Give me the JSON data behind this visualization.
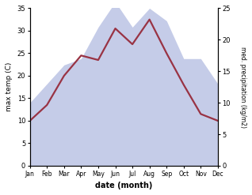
{
  "months": [
    "Jan",
    "Feb",
    "Mar",
    "Apr",
    "May",
    "Jun",
    "Jul",
    "Aug",
    "Sep",
    "Oct",
    "Nov",
    "Dec"
  ],
  "temperature": [
    10,
    13.5,
    20,
    24.5,
    23.5,
    30.5,
    27,
    32.5,
    25,
    18,
    11.5,
    10
  ],
  "precipitation": [
    10,
    13,
    16,
    17,
    22,
    26,
    22,
    25,
    23,
    17,
    17,
    13
  ],
  "temp_color": "#993344",
  "precip_fill_color": "#c5cce8",
  "temp_ylim": [
    0,
    35
  ],
  "precip_ylim": [
    0,
    25
  ],
  "temp_yticks": [
    0,
    5,
    10,
    15,
    20,
    25,
    30,
    35
  ],
  "precip_yticks": [
    0,
    5,
    10,
    15,
    20,
    25
  ],
  "xlabel": "date (month)",
  "ylabel_left": "max temp (C)",
  "ylabel_right": "med. precipitation (kg/m2)",
  "bg_color": "#ffffff",
  "line_width": 1.6
}
